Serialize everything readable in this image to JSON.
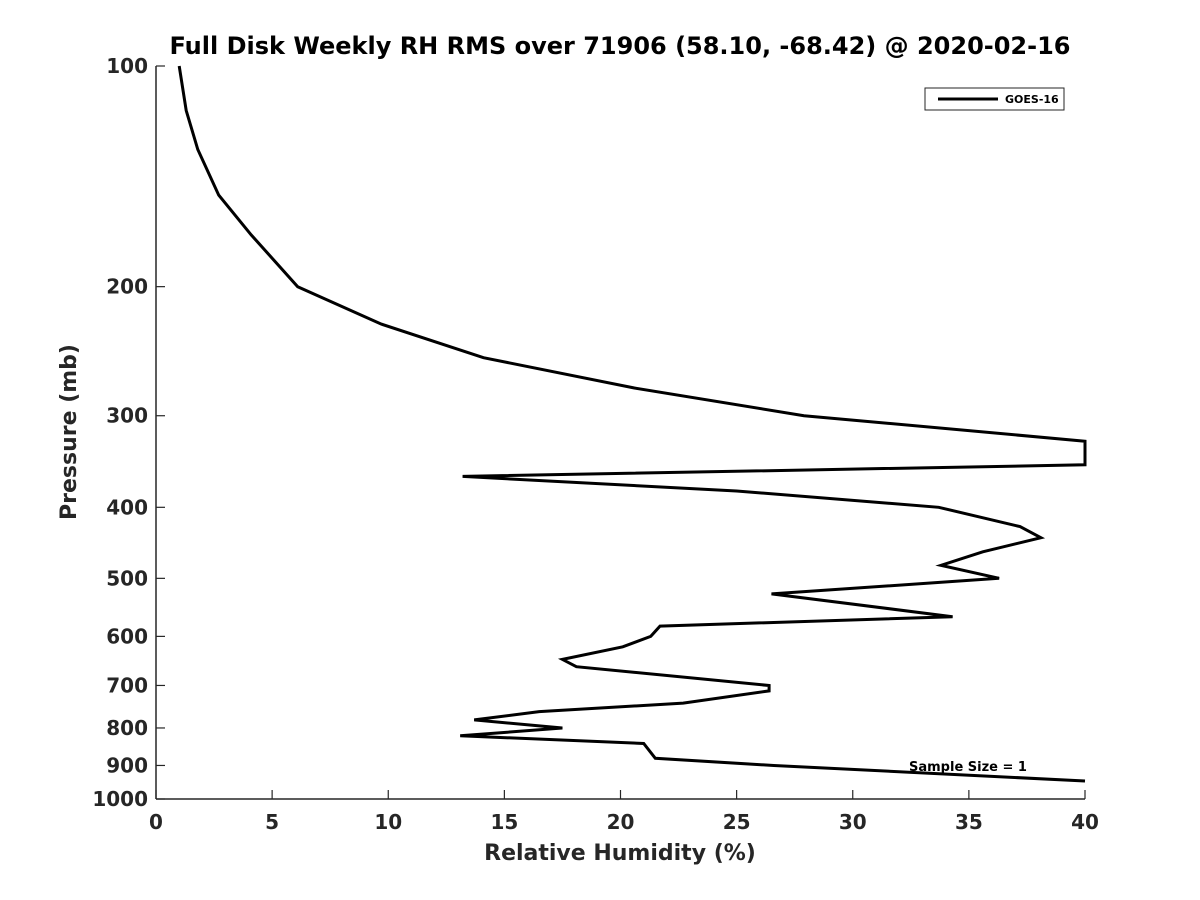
{
  "chart_data": {
    "type": "line",
    "title": "Full Disk Weekly RH RMS over 71906 (58.10, -68.42) @ 2020-02-16",
    "xlabel": "Relative Humidity (%)",
    "ylabel": "Pressure (mb)",
    "xlim": [
      0,
      40
    ],
    "ylim": [
      100,
      1000
    ],
    "y_scale": "log",
    "y_reversed": true,
    "grid": false,
    "legend_position": "top-right",
    "x_ticks": [
      0,
      5,
      10,
      15,
      20,
      25,
      30,
      35,
      40
    ],
    "y_ticks": [
      100,
      200,
      300,
      400,
      500,
      600,
      700,
      800,
      900,
      1000
    ],
    "annotation": "Sample Size = 1",
    "series": [
      {
        "name": "GOES-16",
        "color": "#000000",
        "points": [
          [
            1.0,
            100
          ],
          [
            1.3,
            115
          ],
          [
            1.8,
            130
          ],
          [
            2.7,
            150
          ],
          [
            4.1,
            170
          ],
          [
            6.1,
            200
          ],
          [
            9.7,
            225
          ],
          [
            14.1,
            250
          ],
          [
            20.6,
            275
          ],
          [
            27.9,
            300
          ],
          [
            40.0,
            325
          ],
          [
            40.0,
            350
          ],
          [
            13.2,
            363
          ],
          [
            25.0,
            380
          ],
          [
            33.7,
            400
          ],
          [
            37.2,
            425
          ],
          [
            38.1,
            440
          ],
          [
            35.6,
            460
          ],
          [
            33.8,
            480
          ],
          [
            36.3,
            500
          ],
          [
            26.5,
            525
          ],
          [
            34.3,
            564
          ],
          [
            21.7,
            581
          ],
          [
            21.3,
            600
          ],
          [
            20.1,
            620
          ],
          [
            17.5,
            645
          ],
          [
            18.1,
            660
          ],
          [
            26.4,
            700
          ],
          [
            26.4,
            712
          ],
          [
            22.7,
            740
          ],
          [
            16.5,
            760
          ],
          [
            13.7,
            780
          ],
          [
            17.5,
            800
          ],
          [
            13.1,
            820
          ],
          [
            21.0,
            840
          ],
          [
            21.5,
            880
          ],
          [
            26.6,
            900
          ],
          [
            40.0,
            945
          ]
        ]
      }
    ]
  }
}
